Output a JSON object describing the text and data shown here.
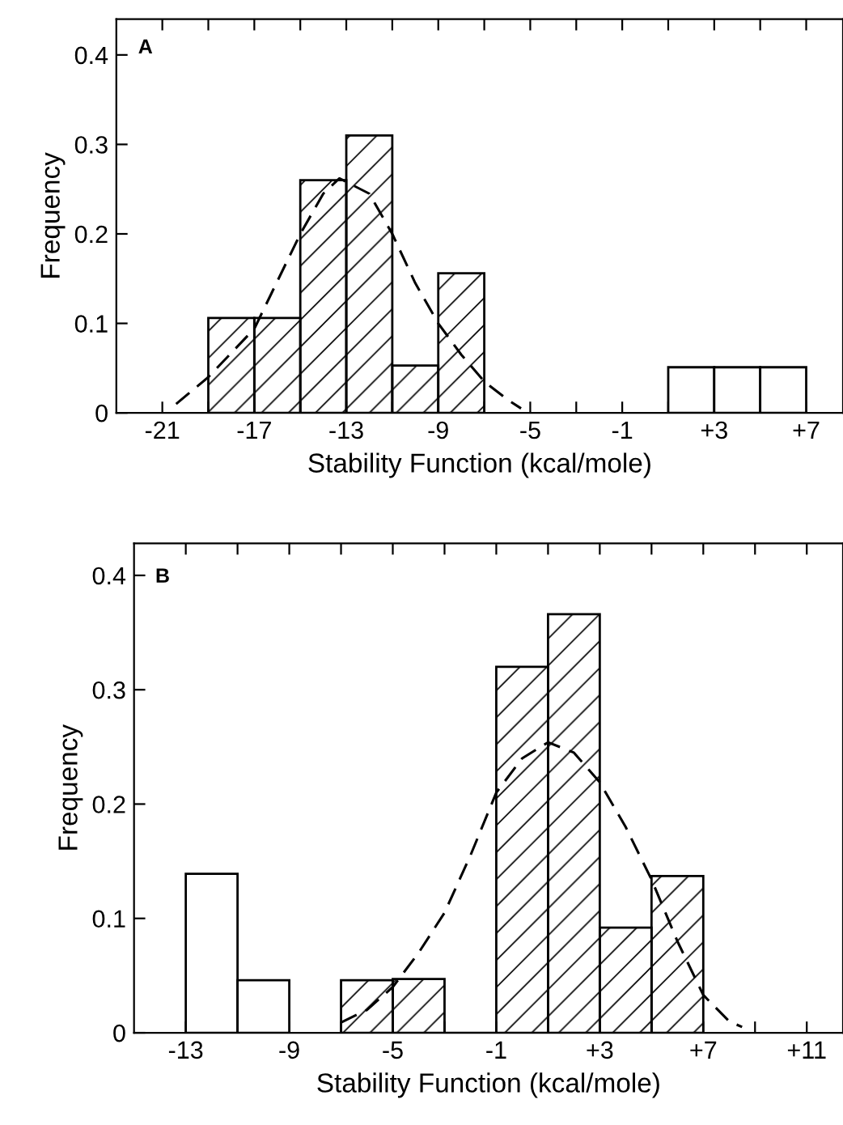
{
  "chart_data": [
    {
      "type": "histogram",
      "xlabel": "Stability Function (kcal/mole)",
      "ylabel": "Frequency",
      "annotations": [
        "A"
      ],
      "series": [
        {
          "color": "#000000",
          "bins": [
            -19,
            -17,
            -15,
            -13,
            -11,
            -9,
            -7
          ],
          "values": [
            0.106,
            0.106,
            0.26,
            0.31,
            0.053,
            0.156
          ]
        },
        {
          "color": "#ffffff",
          "bins": [
            1,
            3,
            5,
            7
          ],
          "values": [
            0.051,
            0.051,
            0.051
          ]
        },
        {
          "type": "line",
          "color": "#000000",
          "line_style": "dashed",
          "x": [
            -20.4,
            -19,
            -17,
            -15,
            -14,
            -13.3,
            -12,
            -11,
            -10,
            -9,
            -8,
            -7,
            -6,
            -5.4
          ],
          "values": [
            0.01,
            0.04,
            0.094,
            0.2,
            0.245,
            0.262,
            0.245,
            0.2,
            0.145,
            0.1,
            0.065,
            0.035,
            0.015,
            0.005
          ]
        }
      ],
      "xlim": [
        -23,
        8.6
      ],
      "ylim": [
        0,
        0.44
      ],
      "xticks": [
        -21,
        {
          "value": -19,
          "label": null
        },
        -17,
        {
          "value": -15,
          "label": null
        },
        -13,
        {
          "value": -11,
          "label": null
        },
        -9,
        {
          "value": -7,
          "label": null
        },
        -5,
        {
          "value": -3,
          "label": null
        },
        -1,
        {
          "value": 1,
          "label": null
        },
        {
          "value": 3,
          "label": "+3"
        },
        {
          "value": 5,
          "label": null
        },
        {
          "value": 7,
          "label": "+7"
        }
      ],
      "yticks": [
        0,
        0.1,
        0.2,
        0.3,
        0.4
      ],
      "grid": false,
      "legend": false
    },
    {
      "type": "histogram",
      "xlabel": "Stability Function (kcal/mole)",
      "ylabel": "Frequency",
      "annotations": [
        "B"
      ],
      "series": [
        {
          "color": "#000000",
          "bins": [
            -7,
            -5,
            -3,
            -1,
            1,
            3,
            5,
            7
          ],
          "values": [
            0.046,
            0.047,
            0,
            0.32,
            0.366,
            0.092,
            0.137
          ]
        },
        {
          "color": "#ffffff",
          "bins": [
            -13,
            -11,
            -9
          ],
          "values": [
            0.139,
            0.046
          ]
        },
        {
          "type": "line",
          "color": "#000000",
          "line_style": "dashed",
          "x": [
            -7,
            -6,
            -5,
            -4,
            -3,
            -2,
            -1,
            0,
            1,
            2,
            3,
            4,
            5,
            6,
            7,
            8,
            8.5
          ],
          "values": [
            0.009,
            0.02,
            0.04,
            0.07,
            0.105,
            0.155,
            0.21,
            0.24,
            0.254,
            0.245,
            0.219,
            0.18,
            0.134,
            0.08,
            0.033,
            0.01,
            0.005
          ]
        }
      ],
      "xlim": [
        -15,
        12.4
      ],
      "ylim": [
        0,
        0.428
      ],
      "xticks": [
        -13,
        {
          "value": -11,
          "label": null
        },
        -9,
        {
          "value": -7,
          "label": null
        },
        -5,
        {
          "value": -3,
          "label": null
        },
        -1,
        {
          "value": 1,
          "label": null
        },
        {
          "value": 3,
          "label": "+3"
        },
        {
          "value": 5,
          "label": null
        },
        {
          "value": 7,
          "label": "+7"
        },
        {
          "value": 9,
          "label": null
        },
        {
          "value": 11,
          "label": "+11"
        }
      ],
      "yticks": [
        0,
        0.1,
        0.2,
        0.3,
        0.4
      ],
      "grid": false,
      "legend": false
    }
  ]
}
